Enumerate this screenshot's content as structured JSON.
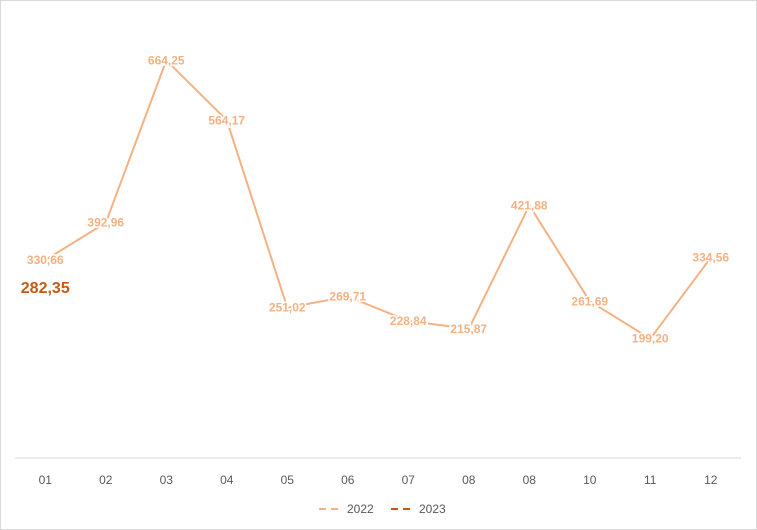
{
  "chart_data": {
    "type": "line",
    "categories": [
      "01",
      "02",
      "03",
      "04",
      "05",
      "06",
      "07",
      "08",
      "08",
      "10",
      "11",
      "12"
    ],
    "series": [
      {
        "name": "2022",
        "color": "#f4b183",
        "values": [
          330.66,
          392.96,
          664.25,
          564.17,
          251.02,
          269.71,
          228.84,
          215.87,
          421.88,
          261.69,
          199.2,
          334.56
        ],
        "labels": [
          "330,66",
          "392,96",
          "664,25",
          "564,17",
          "251,02",
          "269,71",
          "228,84",
          "215,87",
          "421,88",
          "261,69",
          "199,20",
          "334,56"
        ]
      },
      {
        "name": "2023",
        "color": "#c55a11",
        "values": [
          282.35,
          null,
          null,
          null,
          null,
          null,
          null,
          null,
          null,
          null,
          null,
          null
        ],
        "labels": [
          "282,35",
          "",
          "",
          "",
          "",
          "",
          "",
          "",
          "",
          "",
          "",
          ""
        ]
      }
    ],
    "title": "",
    "xlabel": "",
    "ylabel": "",
    "ylim": [
      0,
      750
    ],
    "grid": false,
    "legend_position": "bottom-center"
  }
}
